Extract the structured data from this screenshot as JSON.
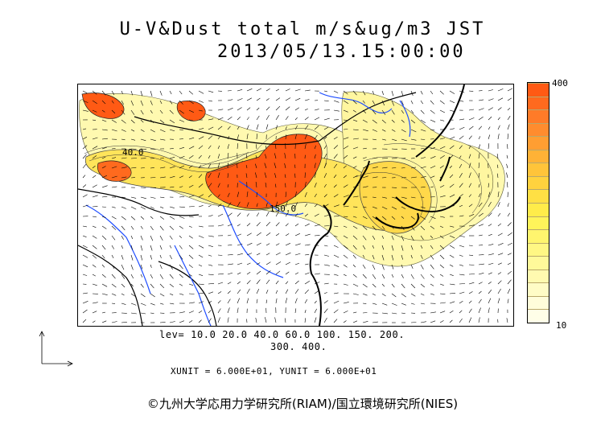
{
  "title": {
    "line1": "U-V&Dust total m/s&ug/m3 JST",
    "line2": "2013/05/13.15:00:00"
  },
  "colorbar": {
    "max_label": "400",
    "min_label": "10",
    "colors": [
      "#ff5a14",
      "#ff6a1e",
      "#ff7b28",
      "#ff8c2e",
      "#ff9e32",
      "#ffb236",
      "#ffc43a",
      "#ffd23e",
      "#ffe044",
      "#ffec4a",
      "#fff45a",
      "#fff56e",
      "#fff784",
      "#fff99a",
      "#fffab0",
      "#fffcc6",
      "#fffdda",
      "#fffee8"
    ]
  },
  "contour_labels": [
    "40.0",
    "150.0"
  ],
  "levels": {
    "line1": "lev= 10.0 20.0 40.0 60.0 100. 150. 200.",
    "line2": "300. 400."
  },
  "units": "XUNIT = 6.000E+01, YUNIT = 6.000E+01",
  "credit": "©九州大学応用力学研究所(RIAM)/国立環境研究所(NIES)"
}
